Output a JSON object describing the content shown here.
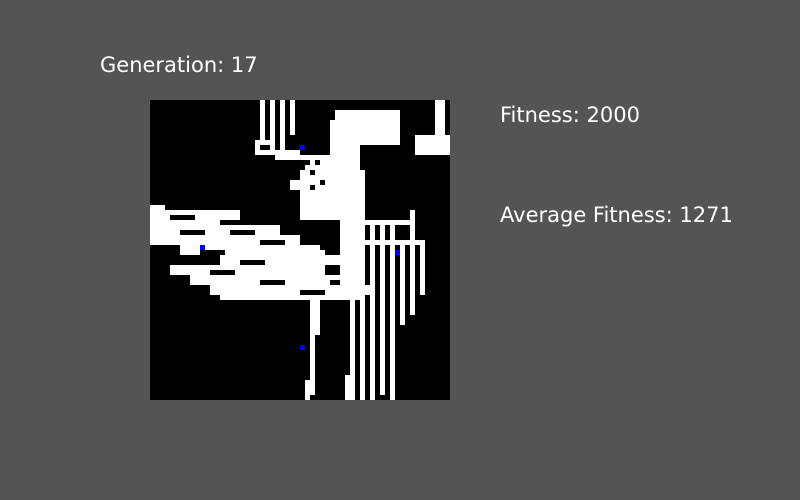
{
  "labels": {
    "generation": "Generation: 17",
    "fitness": "Fitness: 2000",
    "average_fitness": "Average Fitness: 1271"
  },
  "colors": {
    "background": "#545454",
    "grid_background": "#000000",
    "path": "#ffffff",
    "agent": "#0000ff",
    "text": "#ffffff"
  },
  "grid": {
    "cols": 60,
    "rows": 60
  }
}
